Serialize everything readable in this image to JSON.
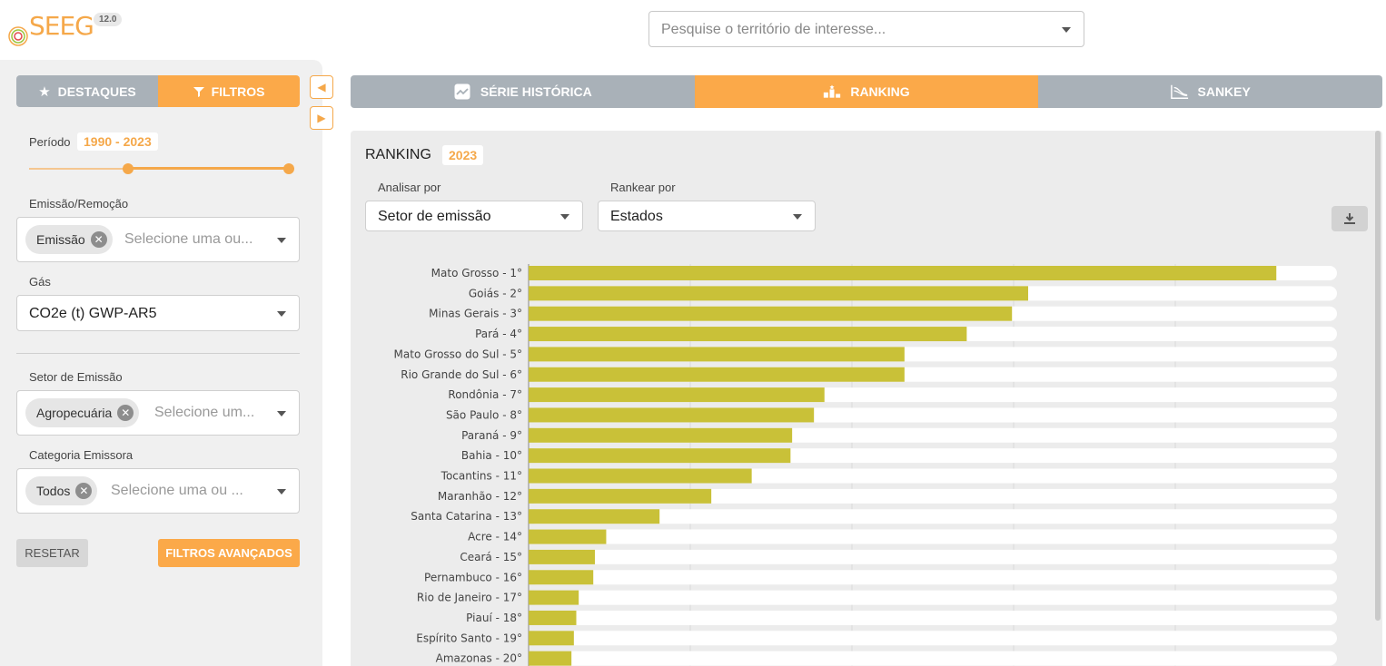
{
  "app": {
    "logo_text": "SEEG",
    "version": "12.0"
  },
  "search": {
    "placeholder": "Pesquise o território de interesse..."
  },
  "sidebar": {
    "tabs": [
      {
        "label": "DESTAQUES",
        "icon": "star-icon"
      },
      {
        "label": "FILTROS",
        "icon": "filter-icon"
      }
    ],
    "period": {
      "label": "Período",
      "value": "1990 - 2023",
      "start": 1990,
      "end": 2023
    },
    "emissao_remocao": {
      "label": "Emissão/Remoção",
      "chip": "Emissão",
      "placeholder": "Selecione uma ou..."
    },
    "gas": {
      "label": "Gás",
      "value": "CO2e (t) GWP-AR5"
    },
    "setor": {
      "label": "Setor de Emissão",
      "chip": "Agropecuária",
      "placeholder": "Selecione um..."
    },
    "categoria": {
      "label": "Categoria Emissora",
      "chip": "Todos",
      "placeholder": "Selecione uma ou ..."
    },
    "reset_label": "RESETAR",
    "advanced_label": "FILTROS AVANÇADOS"
  },
  "main_tabs": [
    {
      "label": "SÉRIE HISTÓRICA",
      "icon": "line-chart-icon",
      "active": false
    },
    {
      "label": "RANKING",
      "icon": "podium-icon",
      "active": true
    },
    {
      "label": "SANKEY",
      "icon": "sankey-icon",
      "active": false
    }
  ],
  "ranking": {
    "title": "RANKING",
    "year": "2023",
    "analisar_label": "Analisar por",
    "analisar_value": "Setor de emissão",
    "rankear_label": "Rankear por",
    "rankear_value": "Estados"
  },
  "chart_data": {
    "type": "bar",
    "orientation": "horizontal",
    "bar_color": "#c9c138",
    "track_color": "#ffffff",
    "categories": [
      "Mato Grosso - 1°",
      "Goiás - 2°",
      "Minas Gerais - 3°",
      "Pará - 4°",
      "Mato Grosso do Sul - 5°",
      "Rio Grande do Sul - 6°",
      "Rondônia - 7°",
      "São Paulo - 8°",
      "Paraná - 9°",
      "Bahia - 10°",
      "Tocantins - 11°",
      "Maranhão - 12°",
      "Santa Catarina - 13°",
      "Acre - 14°",
      "Ceará - 15°",
      "Pernambuco - 16°",
      "Rio de Janeiro - 17°",
      "Piauí - 18°",
      "Espírito Santo - 19°",
      "Amazonas - 20°"
    ],
    "values": [
      0.925,
      0.618,
      0.598,
      0.542,
      0.465,
      0.465,
      0.366,
      0.353,
      0.326,
      0.324,
      0.276,
      0.226,
      0.162,
      0.096,
      0.082,
      0.08,
      0.062,
      0.059,
      0.056,
      0.053
    ],
    "xlim": [
      0,
      1
    ],
    "grid": true
  }
}
